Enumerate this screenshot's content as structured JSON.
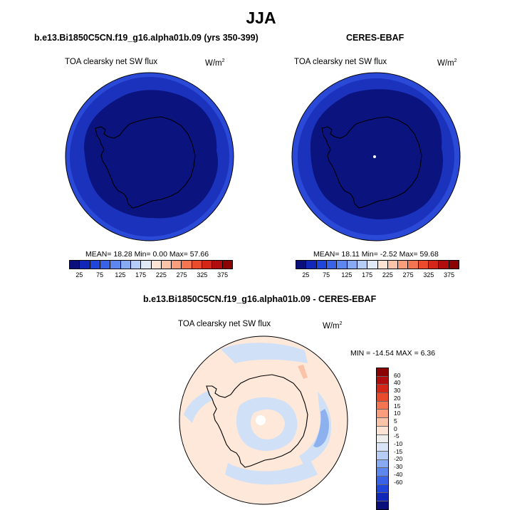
{
  "title": "JJA",
  "panels": {
    "model": {
      "title": "b.e13.Bi1850C5CN.f19_g16.alpha01b.09 (yrs 350-399)",
      "variable": "TOA clearsky net SW flux",
      "unit_base": "W/m",
      "unit_exp": "2",
      "stats": "MEAN=  18.28  Min=   0.00  Max=  57.66"
    },
    "obs": {
      "title": "CERES-EBAF",
      "variable": "TOA clearsky net SW flux",
      "unit_base": "W/m",
      "unit_exp": "2",
      "stats": "MEAN=  18.11  Min=   -2.52  Max=  59.68"
    },
    "diff": {
      "title": "b.e13.Bi1850C5CN.f19_g16.alpha01b.09 - CERES-EBAF",
      "variable": "TOA clearsky net SW flux",
      "unit_base": "W/m",
      "unit_exp": "2",
      "stats": "MIN = -14.54  MAX =   6.36"
    }
  },
  "colorbar_abs": {
    "colors": [
      "#0a0f7a",
      "#1027b8",
      "#2045db",
      "#3a62e6",
      "#5d86ee",
      "#88aaf2",
      "#b6cdf7",
      "#e1e8f6",
      "#fde3d3",
      "#fbc4a8",
      "#f99d7c",
      "#f47552",
      "#ea4b2c",
      "#d5261a",
      "#b20d0e",
      "#8c0303"
    ],
    "ticks": [
      "25",
      "75",
      "125",
      "175",
      "225",
      "275",
      "325",
      "375"
    ]
  },
  "colorbar_diff": {
    "colors": [
      "#0a0f7a",
      "#1027b8",
      "#2045db",
      "#3a62e6",
      "#5d86ee",
      "#88aaf2",
      "#b6cdf7",
      "#d9e4f7",
      "#eeeeee",
      "#fde3d3",
      "#fbc4a8",
      "#f99d7c",
      "#f47552",
      "#ea4b2c",
      "#d5261a",
      "#b20d0e",
      "#8c0303"
    ],
    "ticks": [
      "60",
      "40",
      "30",
      "20",
      "15",
      "10",
      "5",
      "0",
      "-5",
      "-10",
      "-15",
      "-20",
      "-30",
      "-40",
      "-60"
    ]
  },
  "map_colors": {
    "ring_outer": "#2a49d6",
    "ring_mid": "#1b32bd",
    "interior": "#0a137e",
    "diff_background": "#fde8da",
    "diff_negative_light": "#cfe0f7",
    "diff_negative_mid": "#8db0ee",
    "diff_positive": "#fbc4a8",
    "pole_hole": "#ffffff"
  }
}
